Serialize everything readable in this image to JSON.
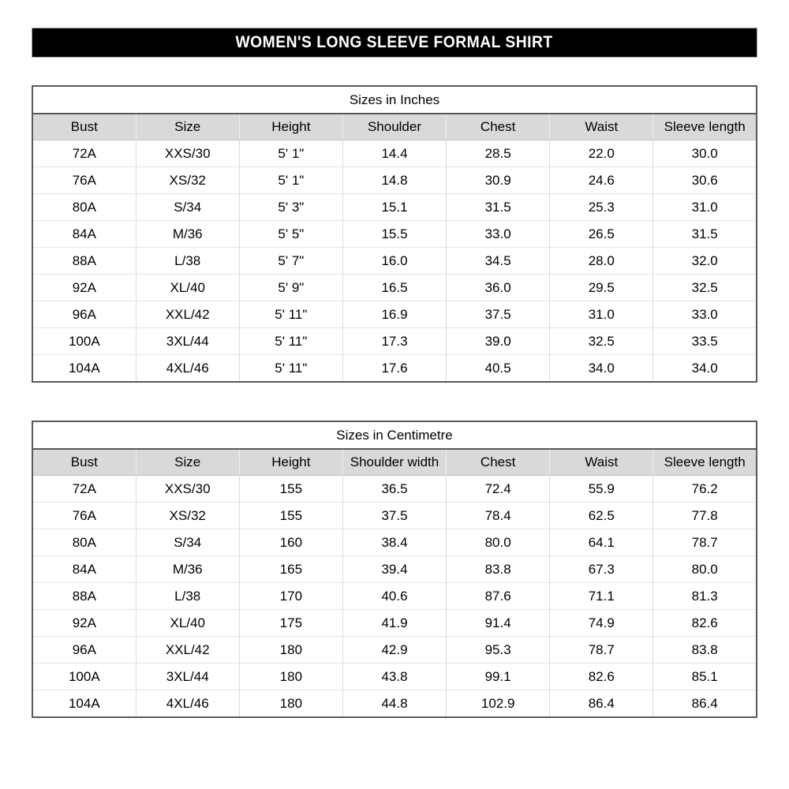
{
  "title_bar": {
    "text": "WOMEN'S LONG SLEEVE FORMAL SHIRT",
    "bg_color": "#000000",
    "text_color": "#ffffff"
  },
  "colors": {
    "header_bg": "#d9d9d9",
    "outer_border": "#595959",
    "grid_line": "#d9d9d9"
  },
  "tables": [
    {
      "caption": "Sizes in Inches",
      "headers": [
        "Bust",
        "Size",
        "Height",
        "Shoulder",
        "Chest",
        "Waist",
        "Sleeve length"
      ],
      "rows": [
        [
          "72A",
          "XXS/30",
          "5' 1\"",
          "14.4",
          "28.5",
          "22.0",
          "30.0"
        ],
        [
          "76A",
          "XS/32",
          "5' 1\"",
          "14.8",
          "30.9",
          "24.6",
          "30.6"
        ],
        [
          "80A",
          "S/34",
          "5' 3\"",
          "15.1",
          "31.5",
          "25.3",
          "31.0"
        ],
        [
          "84A",
          "M/36",
          "5' 5\"",
          "15.5",
          "33.0",
          "26.5",
          "31.5"
        ],
        [
          "88A",
          "L/38",
          "5' 7\"",
          "16.0",
          "34.5",
          "28.0",
          "32.0"
        ],
        [
          "92A",
          "XL/40",
          "5' 9\"",
          "16.5",
          "36.0",
          "29.5",
          "32.5"
        ],
        [
          "96A",
          "XXL/42",
          "5' 11\"",
          "16.9",
          "37.5",
          "31.0",
          "33.0"
        ],
        [
          "100A",
          "3XL/44",
          "5' 11\"",
          "17.3",
          "39.0",
          "32.5",
          "33.5"
        ],
        [
          "104A",
          "4XL/46",
          "5' 11\"",
          "17.6",
          "40.5",
          "34.0",
          "34.0"
        ]
      ]
    },
    {
      "caption": "Sizes in Centimetre",
      "headers": [
        "Bust",
        "Size",
        "Height",
        "Shoulder width",
        "Chest",
        "Waist",
        "Sleeve length"
      ],
      "rows": [
        [
          "72A",
          "XXS/30",
          "155",
          "36.5",
          "72.4",
          "55.9",
          "76.2"
        ],
        [
          "76A",
          "XS/32",
          "155",
          "37.5",
          "78.4",
          "62.5",
          "77.8"
        ],
        [
          "80A",
          "S/34",
          "160",
          "38.4",
          "80.0",
          "64.1",
          "78.7"
        ],
        [
          "84A",
          "M/36",
          "165",
          "39.4",
          "83.8",
          "67.3",
          "80.0"
        ],
        [
          "88A",
          "L/38",
          "170",
          "40.6",
          "87.6",
          "71.1",
          "81.3"
        ],
        [
          "92A",
          "XL/40",
          "175",
          "41.9",
          "91.4",
          "74.9",
          "82.6"
        ],
        [
          "96A",
          "XXL/42",
          "180",
          "42.9",
          "95.3",
          "78.7",
          "83.8"
        ],
        [
          "100A",
          "3XL/44",
          "180",
          "43.8",
          "99.1",
          "82.6",
          "85.1"
        ],
        [
          "104A",
          "4XL/46",
          "180",
          "44.8",
          "102.9",
          "86.4",
          "86.4"
        ]
      ]
    }
  ]
}
